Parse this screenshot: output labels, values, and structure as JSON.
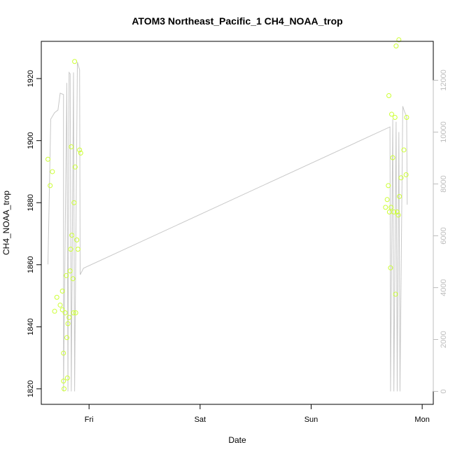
{
  "chart_data": {
    "type": "scatter",
    "title": "ATOM3 Northeast_Pacific_1 CH4_NOAA_trop",
    "xlabel": "Date",
    "ylabel": "CH4_NOAA_trop",
    "x_tick_labels": [
      {
        "label": "Fri",
        "x": 1.0
      },
      {
        "label": "Sat",
        "x": 2.0
      },
      {
        "label": "Sun",
        "x": 3.0
      },
      {
        "label": "Mon",
        "x": 4.0
      }
    ],
    "xlim": [
      0.57,
      4.1
    ],
    "ylim": [
      1815,
      1932
    ],
    "y_ticks": [
      1820,
      1840,
      1860,
      1880,
      1900,
      1920
    ],
    "y2lim": [
      -500,
      13500
    ],
    "y2_ticks": [
      0,
      2000,
      4000,
      6000,
      8000,
      10000,
      12000
    ],
    "point_color": "#ccff33",
    "line_color": "#c8c8c8",
    "series": [
      {
        "values": [
          [
            0.63,
            1894
          ],
          [
            0.65,
            1885.5
          ],
          [
            0.67,
            1890
          ],
          [
            0.69,
            1845
          ],
          [
            0.71,
            1849.5
          ],
          [
            0.74,
            1847
          ],
          [
            0.76,
            1845.5
          ],
          [
            0.76,
            1851.5
          ],
          [
            0.77,
            1831.5
          ],
          [
            0.77,
            1822.5
          ],
          [
            0.775,
            1820
          ],
          [
            0.785,
            1844.5
          ],
          [
            0.795,
            1856.5
          ],
          [
            0.8,
            1836.5
          ],
          [
            0.805,
            1823.5
          ],
          [
            0.81,
            1841
          ],
          [
            0.82,
            1843
          ],
          [
            0.83,
            1858
          ],
          [
            0.835,
            1865
          ],
          [
            0.84,
            1898
          ],
          [
            0.845,
            1869.5
          ],
          [
            0.855,
            1855.5
          ],
          [
            0.86,
            1844.5
          ],
          [
            0.865,
            1880
          ],
          [
            0.87,
            1925.5
          ],
          [
            0.875,
            1891.5
          ],
          [
            0.88,
            1844.5
          ],
          [
            0.89,
            1868
          ],
          [
            0.9,
            1865
          ],
          [
            0.915,
            1897
          ],
          [
            0.925,
            1896
          ],
          [
            3.67,
            1878.5
          ],
          [
            3.685,
            1881
          ],
          [
            3.695,
            1885.5
          ],
          [
            3.7,
            1914.5
          ],
          [
            3.705,
            1877
          ],
          [
            3.715,
            1859
          ],
          [
            3.72,
            1878.5
          ],
          [
            3.725,
            1908.5
          ],
          [
            3.735,
            1894.5
          ],
          [
            3.745,
            1877
          ],
          [
            3.755,
            1907.5
          ],
          [
            3.76,
            1850.5
          ],
          [
            3.765,
            1930.5
          ],
          [
            3.775,
            1877
          ],
          [
            3.785,
            1876
          ],
          [
            3.79,
            1932.5
          ],
          [
            3.795,
            1882
          ],
          [
            3.81,
            1888
          ],
          [
            3.835,
            1897
          ],
          [
            3.855,
            1889
          ],
          [
            3.86,
            1907.5
          ]
        ]
      },
      {
        "axis": "right",
        "values": [
          [
            0.63,
            4900
          ],
          [
            0.655,
            10500
          ],
          [
            0.69,
            10750
          ],
          [
            0.72,
            10850
          ],
          [
            0.74,
            11500
          ],
          [
            0.77,
            11450
          ],
          [
            0.77,
            0
          ],
          [
            0.8,
            11900
          ],
          [
            0.81,
            0
          ],
          [
            0.82,
            12300
          ],
          [
            0.83,
            12250
          ],
          [
            0.84,
            0
          ],
          [
            0.86,
            12300
          ],
          [
            0.87,
            0
          ],
          [
            0.895,
            12700
          ],
          [
            0.915,
            12400
          ],
          [
            0.92,
            4500
          ],
          [
            0.95,
            4750
          ],
          [
            3.71,
            10200
          ],
          [
            3.715,
            0
          ],
          [
            3.735,
            10500
          ],
          [
            3.745,
            0
          ],
          [
            3.765,
            10400
          ],
          [
            3.775,
            0
          ],
          [
            3.79,
            10000
          ],
          [
            3.8,
            0
          ],
          [
            3.825,
            11000
          ],
          [
            3.84,
            10800
          ],
          [
            3.86,
            10600
          ],
          [
            3.865,
            7200
          ]
        ]
      }
    ]
  }
}
